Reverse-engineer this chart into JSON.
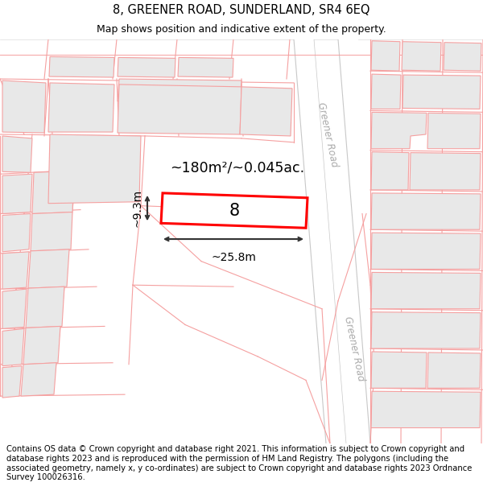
{
  "title": "8, GREENER ROAD, SUNDERLAND, SR4 6EQ",
  "subtitle": "Map shows position and indicative extent of the property.",
  "footer": "Contains OS data © Crown copyright and database right 2021. This information is subject to Crown copyright and database rights 2023 and is reproduced with the permission of HM Land Registry. The polygons (including the associated geometry, namely x, y co-ordinates) are subject to Crown copyright and database rights 2023 Ordnance Survey 100026316.",
  "area_label": "~180m²/~0.045ac.",
  "number_label": "8",
  "width_label": "~25.8m",
  "height_label": "~9.3m",
  "road_label_1": "Greener Road",
  "road_label_2": "Greener Road",
  "title_fontsize": 10.5,
  "subtitle_fontsize": 9,
  "footer_fontsize": 7.2,
  "highlight_color": "#ff0000",
  "building_fill": "#e8e8e8",
  "line_color": "#f5a0a0",
  "road_color": "#c8c8c8",
  "parcel_line_color": "#f5a0a0"
}
